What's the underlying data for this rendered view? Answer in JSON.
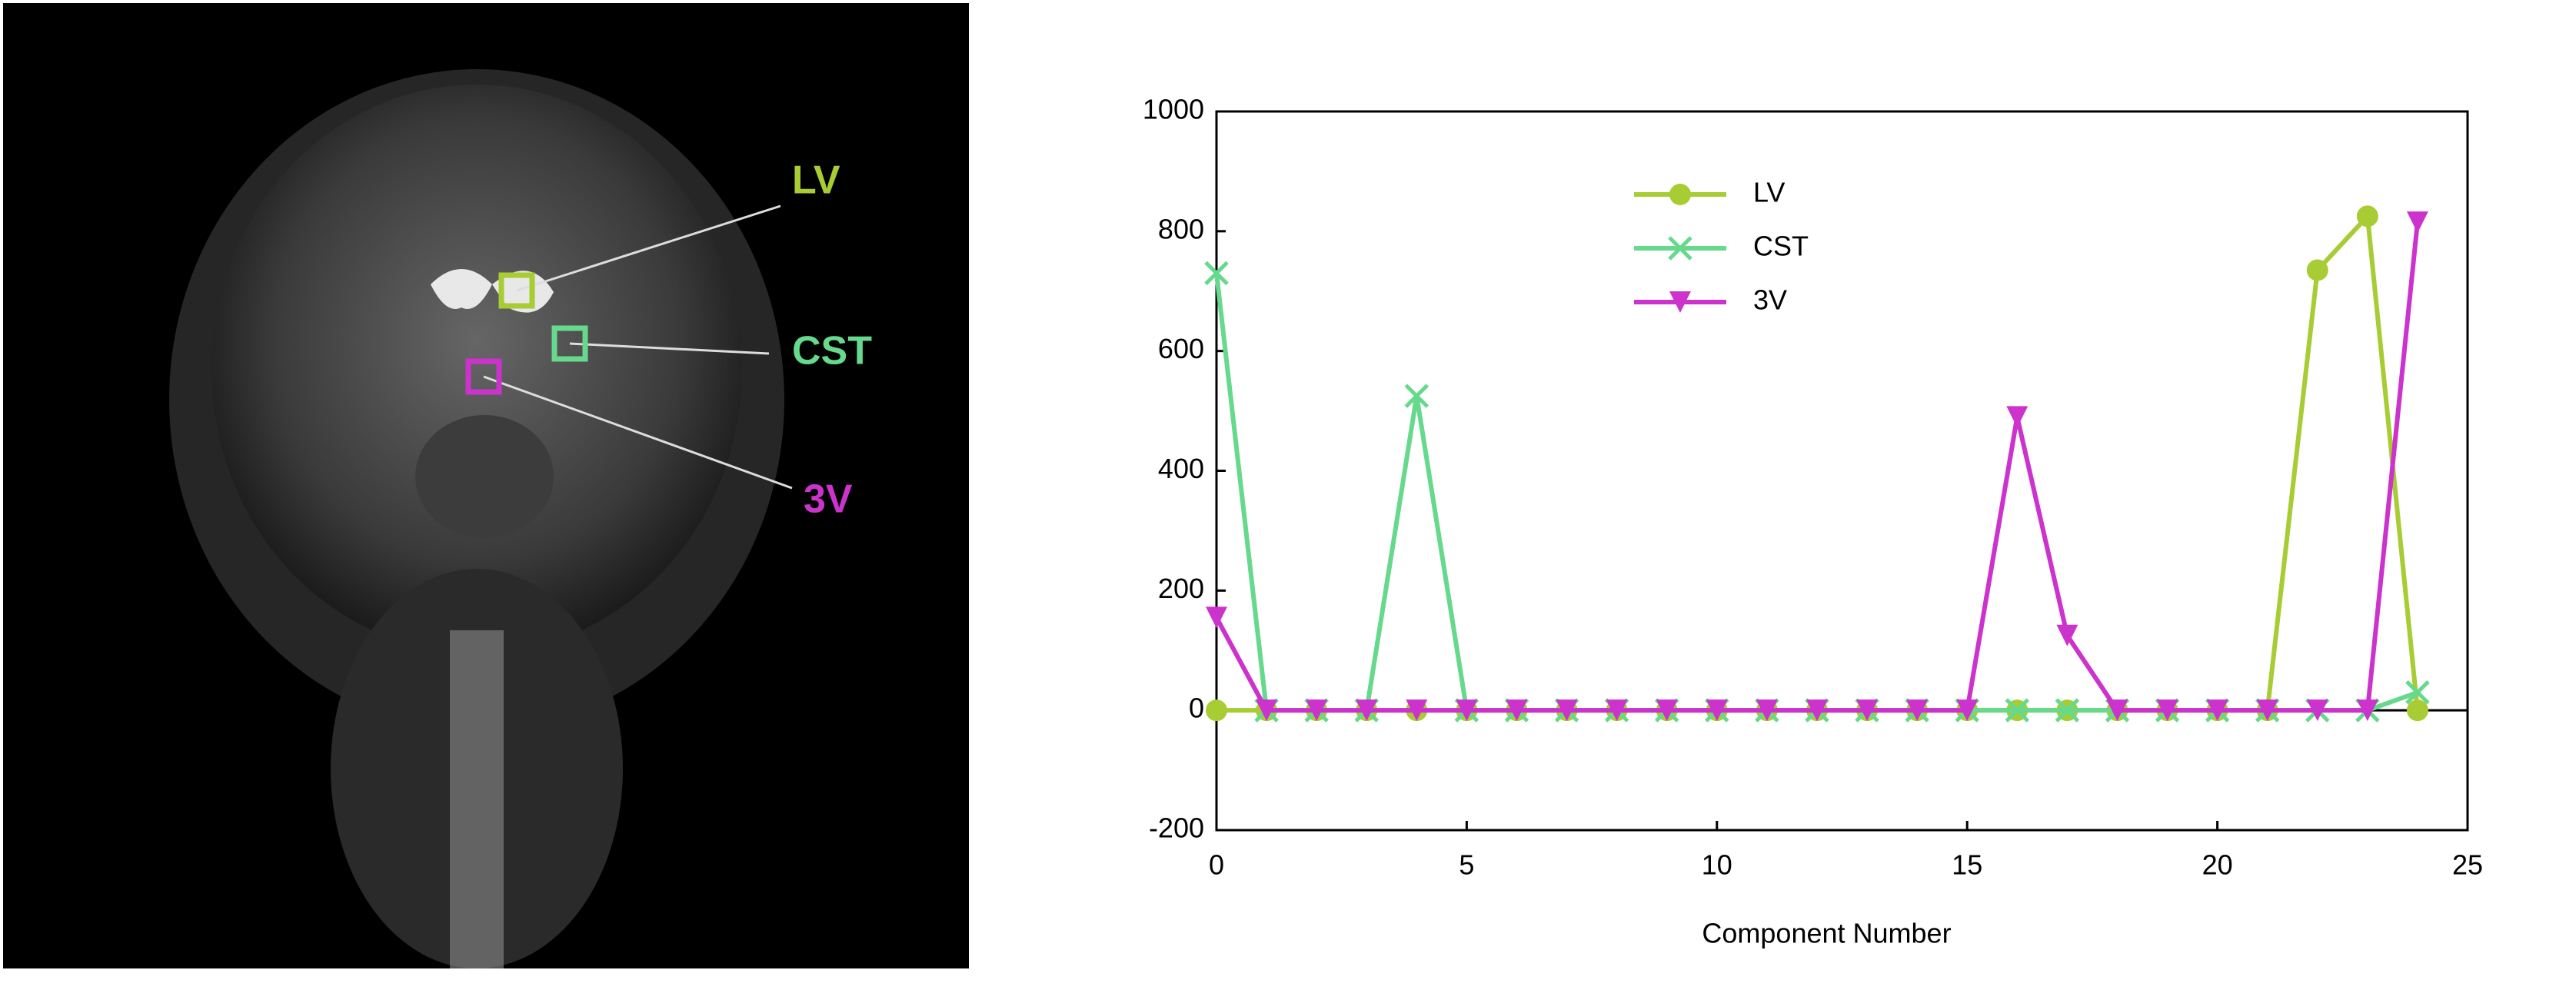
{
  "image": {
    "labels": [
      "LV",
      "CST",
      "3V"
    ]
  },
  "chart_data": {
    "type": "line",
    "xlabel": "Component Number",
    "x": [
      0,
      1,
      2,
      3,
      4,
      5,
      6,
      7,
      8,
      9,
      10,
      11,
      12,
      13,
      14,
      15,
      16,
      17,
      18,
      19,
      20,
      21,
      22,
      23,
      24
    ],
    "series": [
      {
        "name": "LV",
        "color": "#a8cc33",
        "marker": "circle",
        "values": [
          0,
          0,
          0,
          0,
          0,
          0,
          0,
          0,
          0,
          0,
          0,
          0,
          0,
          0,
          0,
          0,
          0,
          0,
          0,
          0,
          0,
          0,
          735,
          825,
          0
        ]
      },
      {
        "name": "CST",
        "color": "#66d98c",
        "marker": "x",
        "values": [
          730,
          0,
          0,
          0,
          525,
          0,
          0,
          0,
          0,
          0,
          0,
          0,
          0,
          0,
          0,
          0,
          0,
          0,
          0,
          0,
          0,
          0,
          0,
          0,
          30
        ]
      },
      {
        "name": "3V",
        "color": "#cc33cc",
        "marker": "triangle-down",
        "values": [
          155,
          0,
          0,
          0,
          0,
          0,
          0,
          0,
          0,
          0,
          0,
          0,
          0,
          0,
          0,
          0,
          490,
          125,
          0,
          0,
          0,
          0,
          0,
          0,
          815
        ]
      }
    ],
    "xlim": [
      0,
      25
    ],
    "xticks": [
      0,
      5,
      10,
      15,
      20,
      25
    ],
    "ylim": [
      -200,
      1000
    ],
    "yticks": [
      -200,
      0,
      200,
      400,
      600,
      800,
      1000
    ],
    "legend": "upper-left-inside"
  }
}
